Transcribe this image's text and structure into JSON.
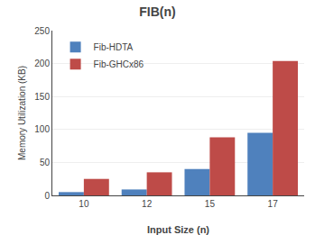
{
  "chart_data": {
    "type": "bar",
    "title": "FIB(n)",
    "xlabel": "Input Size (n)",
    "ylabel": "Memory Utilization (KB)",
    "categories": [
      10,
      12,
      15,
      17
    ],
    "series": [
      {
        "name": "Fib-HDTA",
        "color": "#4F81BD",
        "values": [
          5,
          9,
          40,
          95
        ]
      },
      {
        "name": "Fib-GHCx86",
        "color": "#BE4B48",
        "values": [
          25,
          35,
          88,
          204
        ]
      }
    ],
    "ylim": [
      0,
      250
    ],
    "yticks": [
      0,
      50,
      100,
      150,
      200,
      250
    ],
    "grid": true,
    "legend": "upper left"
  }
}
